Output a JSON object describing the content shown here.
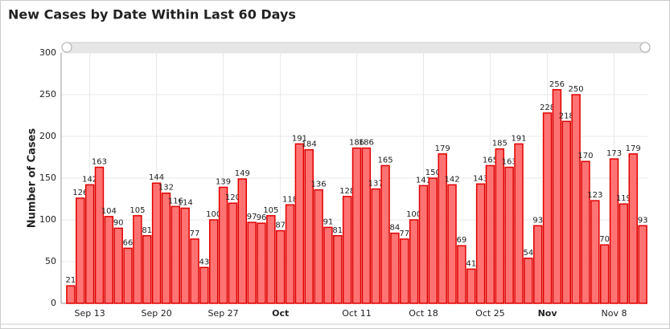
{
  "chart_data": {
    "type": "bar",
    "title": "New Cases by Date Within Last 60 Days",
    "y_label": "Number of Cases",
    "categories": [
      null,
      null,
      "Sep 13",
      null,
      null,
      null,
      null,
      null,
      null,
      "Sep 20",
      null,
      null,
      null,
      null,
      null,
      null,
      "Sep 27",
      null,
      null,
      null,
      null,
      null,
      "Oct",
      null,
      null,
      null,
      null,
      null,
      null,
      null,
      "Oct 11",
      null,
      null,
      null,
      null,
      null,
      null,
      "Oct 18",
      null,
      null,
      null,
      null,
      null,
      null,
      "Oct 25",
      null,
      null,
      null,
      null,
      null,
      "Nov",
      null,
      null,
      null,
      null,
      null,
      null,
      "Nov 8",
      null,
      null,
      null
    ],
    "values": [
      21,
      126,
      142,
      163,
      104,
      90,
      66,
      105,
      81,
      144,
      132,
      116,
      114,
      77,
      43,
      100,
      139,
      120,
      149,
      97,
      96,
      105,
      87,
      118,
      191,
      184,
      136,
      91,
      81,
      128,
      186,
      186,
      137,
      165,
      84,
      77,
      100,
      141,
      150,
      179,
      142,
      69,
      41,
      143,
      165,
      185,
      163,
      191,
      54,
      93,
      228,
      256,
      218,
      250,
      170,
      123,
      70,
      173,
      119,
      179,
      93
    ],
    "color": "#ff7373",
    "ylim": [
      0,
      300
    ],
    "yticks": [
      0,
      50,
      100,
      150,
      200,
      250,
      300
    ],
    "grid": true
  }
}
